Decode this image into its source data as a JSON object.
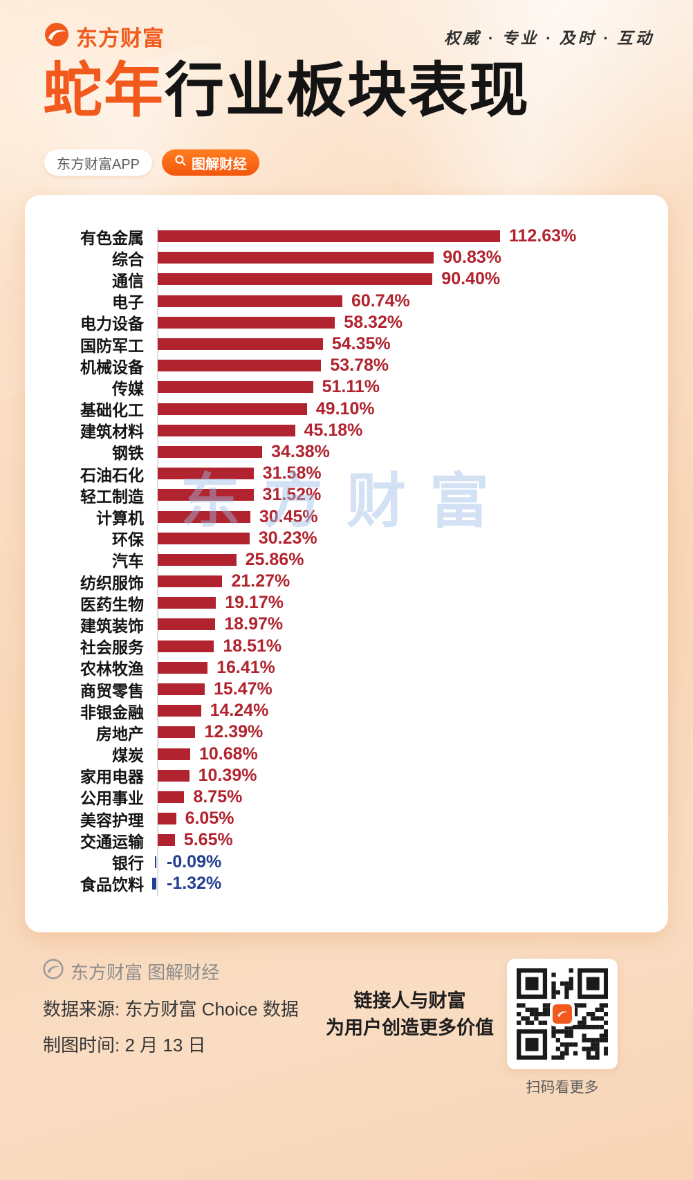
{
  "header": {
    "logo_text": "东方财富",
    "tagline": "权威 · 专业 · 及时 · 互动",
    "title_highlight": "蛇年",
    "title_rest": "行业板块表现",
    "badge_app": "东方财富APP",
    "badge_tag": "图解财经"
  },
  "chart_data": {
    "type": "bar",
    "orientation": "horizontal",
    "title": "蛇年行业板块表现",
    "unit": "%",
    "value_format": "percent_two_decimals",
    "positive_color": "#b1232e",
    "negative_color": "#223f90",
    "axis_color": "#dedede",
    "watermark": "东方财富",
    "categories": [
      "有色金属",
      "综合",
      "通信",
      "电子",
      "电力设备",
      "国防军工",
      "机械设备",
      "传媒",
      "基础化工",
      "建筑材料",
      "钢铁",
      "石油石化",
      "轻工制造",
      "计算机",
      "环保",
      "汽车",
      "纺织服饰",
      "医药生物",
      "建筑装饰",
      "社会服务",
      "农林牧渔",
      "商贸零售",
      "非银金融",
      "房地产",
      "煤炭",
      "家用电器",
      "公用事业",
      "美容护理",
      "交通运输",
      "银行",
      "食品饮料"
    ],
    "values": [
      112.63,
      90.83,
      90.4,
      60.74,
      58.32,
      54.35,
      53.78,
      51.11,
      49.1,
      45.18,
      34.38,
      31.58,
      31.52,
      30.45,
      30.23,
      25.86,
      21.27,
      19.17,
      18.97,
      18.51,
      16.41,
      15.47,
      14.24,
      12.39,
      10.68,
      10.39,
      8.75,
      6.05,
      5.65,
      -0.09,
      -1.32
    ]
  },
  "footer": {
    "brand_line": "东方财富 图解财经",
    "source_line": "数据来源: 东方财富 Choice 数据",
    "date_line": "制图时间: 2 月 13 日",
    "slogan_line1": "链接人与财富",
    "slogan_line2": "为用户创造更多价值",
    "qr_caption": "扫码看更多"
  }
}
